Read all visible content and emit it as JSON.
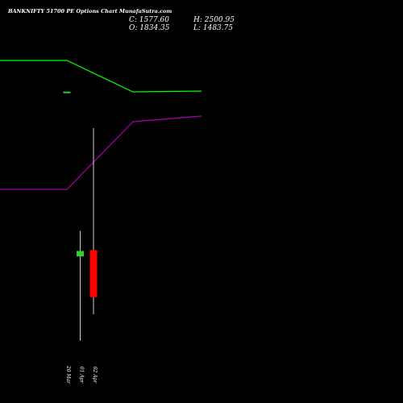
{
  "header": {
    "title": "BANKNIFTY 51700  PE Options  Chart MunafaSutra.com",
    "close": "C: 1577.60",
    "open": "O: 1834.35",
    "high": "H: 2500.95",
    "low": "L: 1483.75"
  },
  "colors": {
    "background": "#000000",
    "upper_line": "#00ff00",
    "lower_line": "#aa00aa",
    "bull_candle": "#33cc33",
    "bear_candle": "#ff0000",
    "wick": "#ffffff",
    "text": "#ffffff"
  },
  "chart_data": {
    "type": "candlestick",
    "x": [
      "20 Mar",
      "01 Apr",
      "02 Apr"
    ],
    "candles": [
      {
        "date": "20 Mar",
        "open": 2700,
        "high": 2700,
        "low": 2700,
        "close": 2700,
        "direction": "flat"
      },
      {
        "date": "01 Apr",
        "open": 1800,
        "high": 1940,
        "low": 1340,
        "close": 1830,
        "direction": "up"
      },
      {
        "date": "02 Apr",
        "open": 1834.35,
        "high": 2500.95,
        "low": 1483.75,
        "close": 1577.6,
        "direction": "down"
      }
    ],
    "overlay_lines": [
      {
        "color": "#00ff00",
        "points": [
          [
            0,
            75
          ],
          [
            83,
            75
          ],
          [
            165,
            114
          ],
          [
            250,
            113
          ]
        ]
      },
      {
        "color": "#aa00aa",
        "points": [
          [
            0,
            235
          ],
          [
            83,
            235
          ],
          [
            165,
            151
          ],
          [
            250,
            144
          ]
        ]
      }
    ],
    "ylim": [
      1000,
      3200
    ],
    "grid": false
  }
}
